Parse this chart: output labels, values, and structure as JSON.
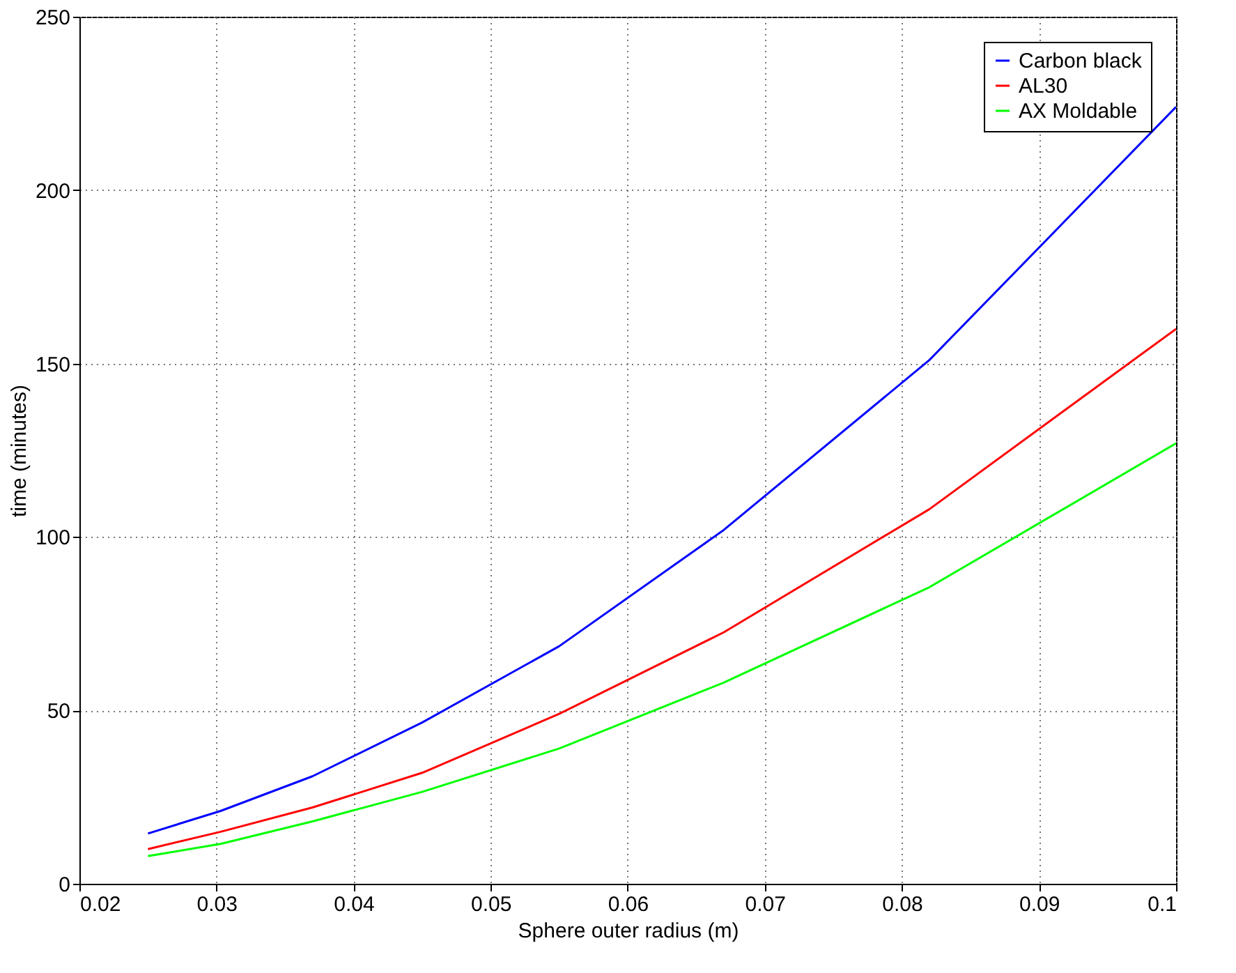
{
  "chart_data": {
    "type": "line",
    "xlabel": "Sphere outer radius (m)",
    "ylabel": "time (minutes)",
    "x": [
      0.025,
      0.0303,
      0.037,
      0.045,
      0.055,
      0.067,
      0.082,
      0.1
    ],
    "series": [
      {
        "name": "Carbon black",
        "color": "#0000ff",
        "values": [
          14.5,
          21,
          31,
          46.5,
          68.5,
          102,
          151,
          224
        ]
      },
      {
        "name": "AL30",
        "color": "#ff0000",
        "values": [
          10,
          15,
          22,
          32,
          49,
          72.5,
          108,
          160
        ]
      },
      {
        "name": "AX Moldable",
        "color": "#00ff00",
        "values": [
          8,
          11.5,
          18,
          26.5,
          39,
          58,
          85.5,
          127
        ]
      }
    ],
    "xlim": [
      0.02,
      0.1
    ],
    "xticks": [
      0.02,
      0.03,
      0.04,
      0.05,
      0.06,
      0.07,
      0.08,
      0.09,
      0.1
    ],
    "ylim": [
      0,
      250
    ],
    "yticks": [
      0,
      50,
      100,
      150,
      200,
      250
    ],
    "grid": true,
    "legend": "top right",
    "marker": "none",
    "line_style": "solid"
  }
}
